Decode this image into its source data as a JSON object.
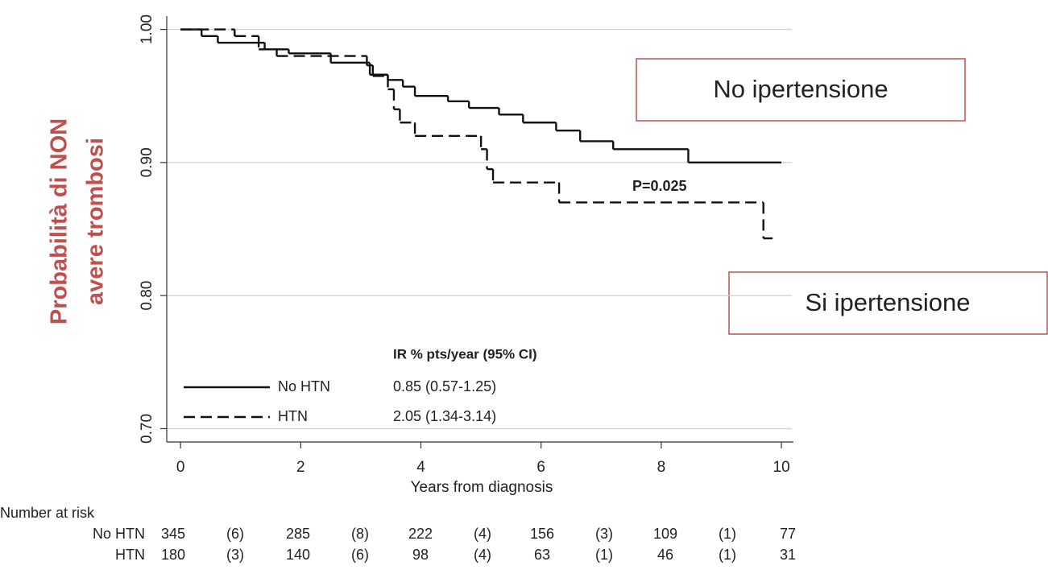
{
  "chart_data": {
    "type": "step",
    "ylabel": [
      "Probabilità di NON",
      "avere trombosi"
    ],
    "xlabel": "Years from diagnosis",
    "xlim": [
      -0.23,
      10.2
    ],
    "ylim": [
      0.69,
      1.01
    ],
    "xticks": [
      0,
      2,
      4,
      6,
      8,
      10
    ],
    "yticks": [
      {
        "value": 0.7,
        "label": "0.70"
      },
      {
        "value": 0.8,
        "label": "0.80"
      },
      {
        "value": 0.9,
        "label": "0.90"
      },
      {
        "value": 1.0,
        "label": "1.00"
      }
    ],
    "grid": true,
    "series": [
      {
        "name": "No HTN",
        "color": "#111111",
        "dash": "solid",
        "x": [
          0,
          0.35,
          0.62,
          1.4,
          1.8,
          2.5,
          3.15,
          3.45,
          3.7,
          3.9,
          4.45,
          4.8,
          5.3,
          5.7,
          6.25,
          6.65,
          7.2,
          8.45,
          10
        ],
        "values": [
          1.0,
          0.995,
          0.99,
          0.985,
          0.982,
          0.975,
          0.966,
          0.962,
          0.957,
          0.95,
          0.946,
          0.941,
          0.936,
          0.93,
          0.924,
          0.916,
          0.91,
          0.9,
          0.9
        ]
      },
      {
        "name": "HTN",
        "color": "#111111",
        "dash": "dashed",
        "x": [
          0,
          0.9,
          1.3,
          1.6,
          3.1,
          3.2,
          3.45,
          3.55,
          3.65,
          3.9,
          5.0,
          5.1,
          5.2,
          6.3,
          9.7,
          9.85
        ],
        "values": [
          1.0,
          0.995,
          0.985,
          0.98,
          0.973,
          0.965,
          0.955,
          0.94,
          0.93,
          0.92,
          0.91,
          0.895,
          0.885,
          0.87,
          0.843,
          0.843
        ]
      }
    ],
    "annotation": "P=0.025",
    "legend_header": "IR % pts/year (95% CI)",
    "legend_values": [
      "0.85 (0.57-1.25)",
      "2.05 (1.34-3.14)"
    ],
    "callouts": [
      "No ipertensione",
      "Si ipertensione"
    ],
    "risk_table": {
      "title": "Number at risk",
      "rows": [
        [
          "345",
          "(6)",
          "285",
          "(8)",
          "222",
          "(4)",
          "156",
          "(3)",
          "109",
          "(1)",
          "77"
        ],
        [
          "180",
          "(3)",
          "140",
          "(6)",
          "98",
          "(4)",
          "63",
          "(1)",
          "46",
          "(1)",
          "31"
        ]
      ]
    }
  }
}
